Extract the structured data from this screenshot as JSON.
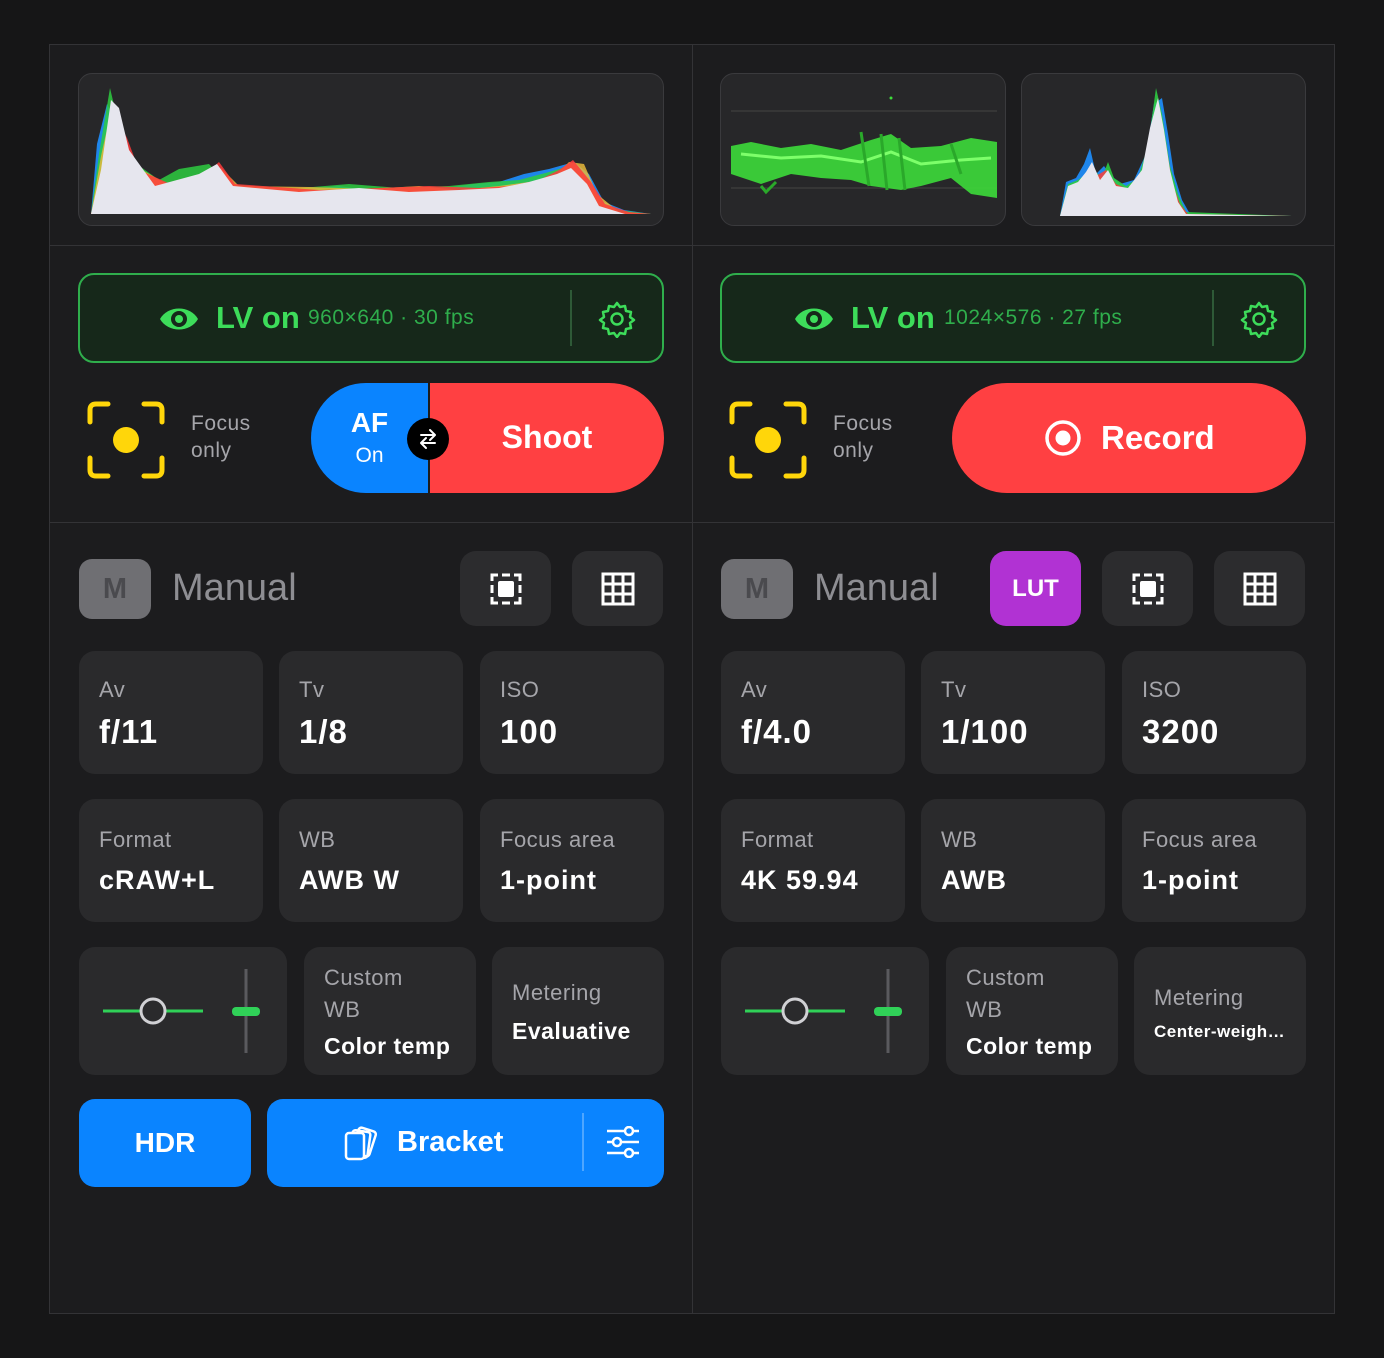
{
  "colors": {
    "accent_blue": "#0a84ff",
    "record_red": "#ff4042",
    "lv_green": "#3ddc5a",
    "lut_purple": "#b132d3",
    "focus_yellow": "#ffd60a"
  },
  "left": {
    "histogram_icon": "rgb-histogram",
    "lv": {
      "label": "LV on",
      "detail": "960×640 · 30 fps",
      "eye_icon": "eye-icon",
      "gear_icon": "gear-icon"
    },
    "focus": {
      "line1": "Focus",
      "line2": "only"
    },
    "af": {
      "title": "AF",
      "state": "On"
    },
    "shoot_label": "Shoot",
    "mode": {
      "badge": "M",
      "title": "Manual"
    },
    "exposure": [
      {
        "label": "Av",
        "value": "f/11"
      },
      {
        "label": "Tv",
        "value": "1/8"
      },
      {
        "label": "ISO",
        "value": "100"
      }
    ],
    "settings": [
      {
        "label": "Format",
        "value": "cRAW+L"
      },
      {
        "label": "WB",
        "value": "AWB W"
      },
      {
        "label": "Focus area",
        "value": "1-point"
      }
    ],
    "custom_wb": {
      "line1": "Custom",
      "line2": "WB",
      "value": "Color temp"
    },
    "metering": {
      "label": "Metering",
      "value": "Evaluative"
    },
    "hdr_label": "HDR",
    "bracket_label": "Bracket"
  },
  "right": {
    "lv": {
      "label": "LV on",
      "detail": "1024×576 · 27 fps",
      "eye_icon": "eye-icon",
      "gear_icon": "gear-icon"
    },
    "focus": {
      "line1": "Focus",
      "line2": "only"
    },
    "record_label": "Record",
    "mode": {
      "badge": "M",
      "title": "Manual"
    },
    "lut_label": "LUT",
    "exposure": [
      {
        "label": "Av",
        "value": "f/4.0"
      },
      {
        "label": "Tv",
        "value": "1/100"
      },
      {
        "label": "ISO",
        "value": "3200"
      }
    ],
    "settings": [
      {
        "label": "Format",
        "value": "4K 59.94"
      },
      {
        "label": "WB",
        "value": "AWB"
      },
      {
        "label": "Focus area",
        "value": "1-point"
      }
    ],
    "custom_wb": {
      "line1": "Custom",
      "line2": "WB",
      "value": "Color temp"
    },
    "metering": {
      "label": "Metering",
      "value": "Center-weigh…"
    }
  }
}
